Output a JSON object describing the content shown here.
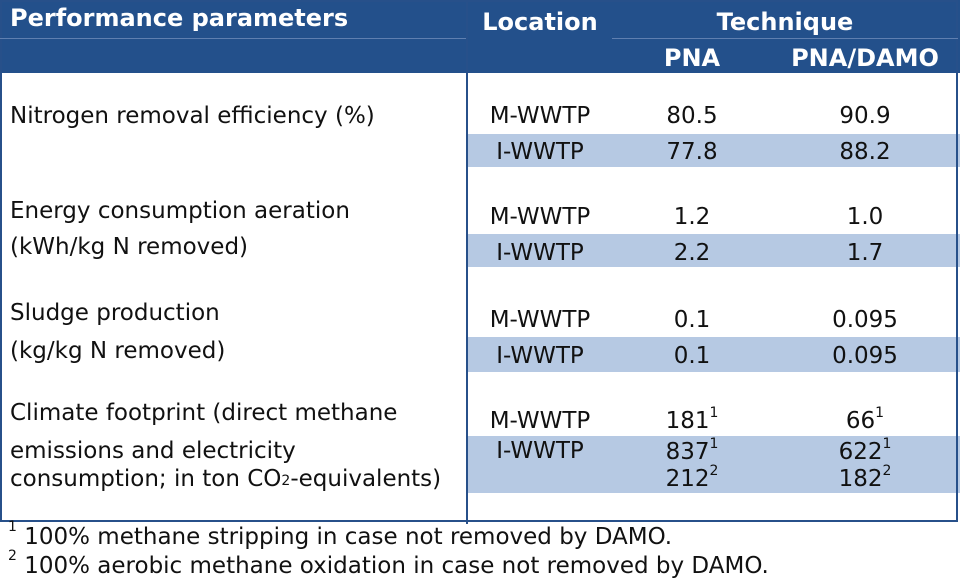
{
  "header": {
    "performance": "Performance parameters",
    "location": "Location",
    "technique": "Technique",
    "pna": "PNA",
    "pna_damo": "PNA/DAMO"
  },
  "rows": [
    {
      "param_lines": [
        "Nitrogen removal efficiency (%)"
      ],
      "m": {
        "loc": "M-WWTP",
        "pna": "80.5",
        "damo": "90.9"
      },
      "i": {
        "loc": "I-WWTP",
        "pna": "77.8",
        "damo": "88.2"
      }
    },
    {
      "param_lines": [
        "Energy consumption aeration",
        "(kWh/kg N removed)"
      ],
      "m": {
        "loc": "M-WWTP",
        "pna": "1.2",
        "damo": "1.0"
      },
      "i": {
        "loc": "I-WWTP",
        "pna": "2.2",
        "damo": "1.7"
      }
    },
    {
      "param_lines": [
        "Sludge production",
        "(kg/kg N removed)"
      ],
      "m": {
        "loc": "M-WWTP",
        "pna": "0.1",
        "damo": "0.095"
      },
      "i": {
        "loc": "I-WWTP",
        "pna": "0.1",
        "damo": "0.095"
      }
    },
    {
      "param_lines": [
        "Climate footprint (direct methane",
        "emissions and electricity",
        "consumption; in ton CO",
        "2",
        "-equivalents)"
      ],
      "m": {
        "loc": "M-WWTP",
        "pna": "181",
        "pna_sup": "1",
        "damo": "66",
        "damo_sup": "1"
      },
      "i": {
        "loc": "I-WWTP",
        "pna": "837",
        "pna_sup": "1",
        "damo": "622",
        "damo_sup": "1",
        "pna2": "212",
        "pna2_sup": "2",
        "damo2": "182",
        "damo2_sup": "2"
      }
    }
  ],
  "footnotes": [
    {
      "mark": "1",
      "text": " 100% methane stripping in case not removed by DAMO."
    },
    {
      "mark": "2",
      "text": " 100% aerobic methane oxidation in case not removed by DAMO."
    }
  ]
}
